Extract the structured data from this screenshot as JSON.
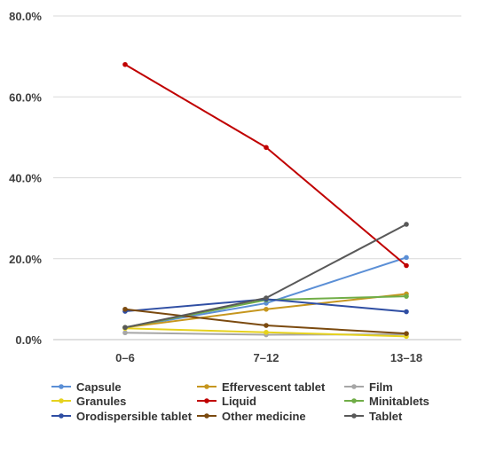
{
  "chart_data": {
    "type": "line",
    "categories": [
      "0–6",
      "7–12",
      "13–18"
    ],
    "y_ticks": [
      "0.0%",
      "20.0%",
      "40.0%",
      "60.0%",
      "80.0%"
    ],
    "ylim": [
      0,
      80
    ],
    "grid": "horizontal",
    "legend_position": "bottom",
    "series": [
      {
        "name": "Capsule",
        "color": "#5b8fd6",
        "values": [
          3.0,
          9.0,
          20.3
        ]
      },
      {
        "name": "Effervescent tablet",
        "color": "#c6961e",
        "values": [
          3.0,
          7.5,
          11.3
        ]
      },
      {
        "name": "Film",
        "color": "#a6a6a6",
        "values": [
          1.7,
          1.2,
          1.3
        ]
      },
      {
        "name": "Granules",
        "color": "#e6d21e",
        "values": [
          2.8,
          1.8,
          0.8
        ]
      },
      {
        "name": "Liquid",
        "color": "#c00000",
        "values": [
          68.0,
          47.5,
          18.3
        ]
      },
      {
        "name": "Minitablets",
        "color": "#70ad47",
        "values": [
          3.0,
          9.8,
          10.7
        ]
      },
      {
        "name": "Orodispersible tablet",
        "color": "#2f4ea3",
        "values": [
          7.0,
          10.0,
          6.9
        ]
      },
      {
        "name": "Other medicine",
        "color": "#7b4a0f",
        "values": [
          7.5,
          3.5,
          1.5
        ]
      },
      {
        "name": "Tablet",
        "color": "#595959",
        "values": [
          3.0,
          10.3,
          28.5
        ]
      }
    ]
  }
}
